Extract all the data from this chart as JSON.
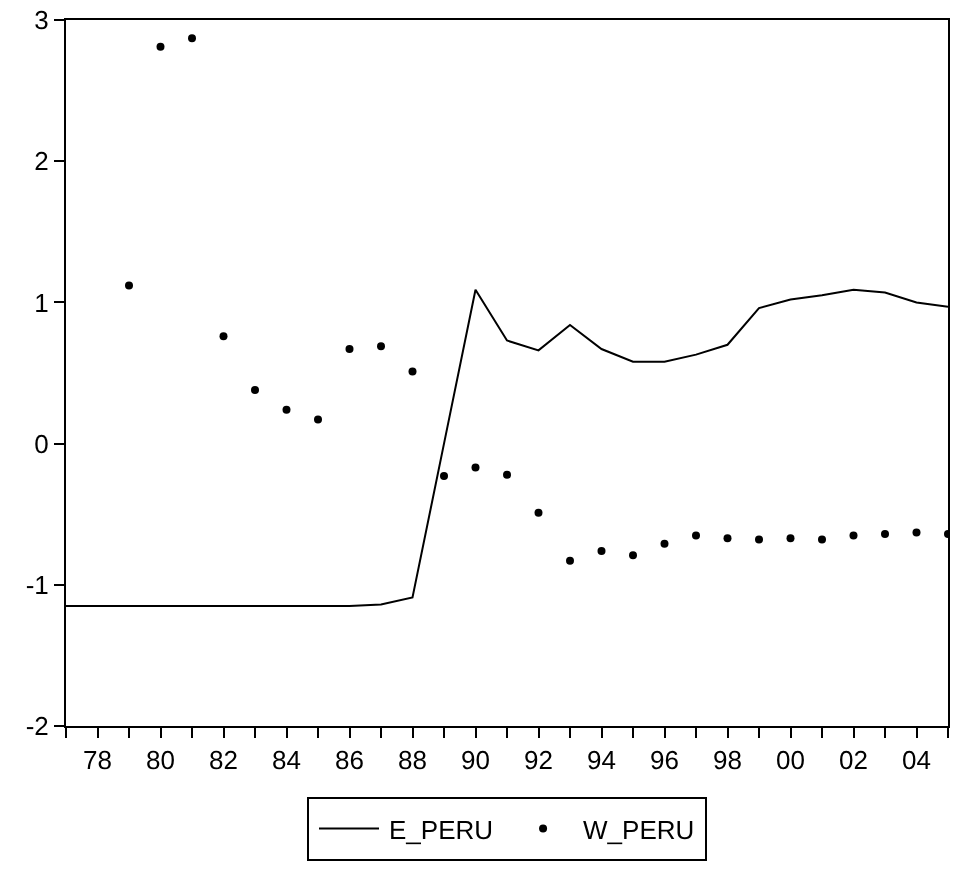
{
  "chart_data": {
    "type": "line",
    "x": [
      1977,
      1978,
      1979,
      1980,
      1981,
      1982,
      1983,
      1984,
      1985,
      1986,
      1987,
      1988,
      1989,
      1990,
      1991,
      1992,
      1993,
      1994,
      1995,
      1996,
      1997,
      1998,
      1999,
      2000,
      2001,
      2002,
      2003,
      2004,
      2005
    ],
    "series": [
      {
        "name": "E_PERU",
        "color": "#000000",
        "marker": "none",
        "line_style": "solid",
        "values": [
          -1.15,
          -1.15,
          -1.15,
          -1.15,
          -1.15,
          -1.15,
          -1.15,
          -1.15,
          -1.15,
          -1.15,
          -1.14,
          -1.09,
          0.0,
          1.09,
          0.73,
          0.66,
          0.84,
          0.67,
          0.58,
          0.58,
          0.63,
          0.7,
          0.96,
          1.02,
          1.05,
          1.09,
          1.07,
          1.0,
          0.97
        ]
      },
      {
        "name": "W_PERU",
        "type": "scatter",
        "color": "#000000",
        "marker": "circle",
        "values": [
          null,
          null,
          1.12,
          2.81,
          2.87,
          0.76,
          0.38,
          0.24,
          0.17,
          0.67,
          0.69,
          0.51,
          -0.23,
          -0.17,
          -0.22,
          -0.49,
          -0.83,
          -0.76,
          -0.79,
          -0.71,
          -0.65,
          -0.67,
          -0.68,
          -0.67,
          -0.68,
          -0.65,
          -0.64,
          -0.63,
          -0.64
        ]
      }
    ],
    "xlim": [
      1977,
      2005
    ],
    "xticks": [
      {
        "value": 1977,
        "label": null
      },
      {
        "value": 1978,
        "label": "78"
      },
      {
        "value": 1979,
        "label": null
      },
      {
        "value": 1980,
        "label": "80"
      },
      {
        "value": 1981,
        "label": null
      },
      {
        "value": 1982,
        "label": "82"
      },
      {
        "value": 1983,
        "label": null
      },
      {
        "value": 1984,
        "label": "84"
      },
      {
        "value": 1985,
        "label": null
      },
      {
        "value": 1986,
        "label": "86"
      },
      {
        "value": 1987,
        "label": null
      },
      {
        "value": 1988,
        "label": "88"
      },
      {
        "value": 1989,
        "label": null
      },
      {
        "value": 1990,
        "label": "90"
      },
      {
        "value": 1991,
        "label": null
      },
      {
        "value": 1992,
        "label": "92"
      },
      {
        "value": 1993,
        "label": null
      },
      {
        "value": 1994,
        "label": "94"
      },
      {
        "value": 1995,
        "label": null
      },
      {
        "value": 1996,
        "label": "96"
      },
      {
        "value": 1997,
        "label": null
      },
      {
        "value": 1998,
        "label": "98"
      },
      {
        "value": 1999,
        "label": null
      },
      {
        "value": 2000,
        "label": "00"
      },
      {
        "value": 2001,
        "label": null
      },
      {
        "value": 2002,
        "label": "02"
      },
      {
        "value": 2003,
        "label": null
      },
      {
        "value": 2004,
        "label": "04"
      },
      {
        "value": 2005,
        "label": null
      }
    ],
    "ylim": [
      -2,
      3
    ],
    "yticks": [
      -2,
      -1,
      0,
      1,
      2,
      3
    ],
    "legend": "bottom"
  }
}
